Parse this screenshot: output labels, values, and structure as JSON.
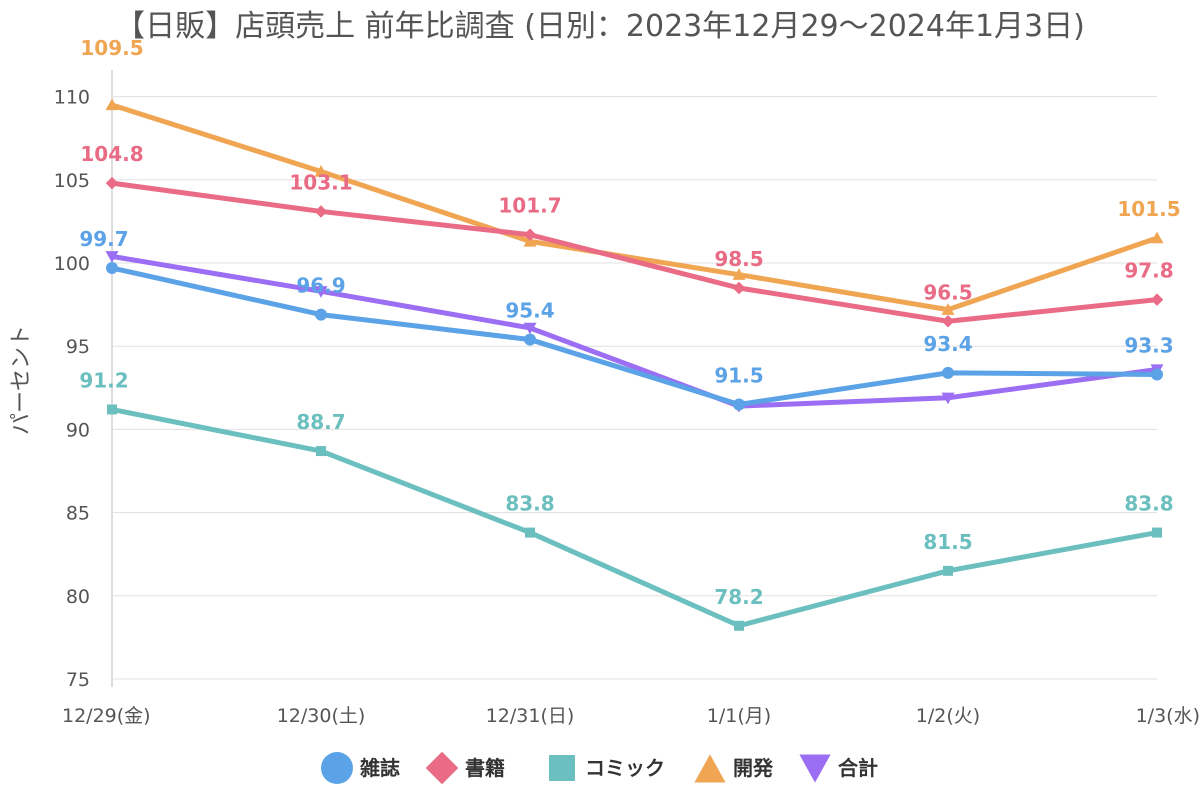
{
  "chart_data": {
    "type": "line",
    "title": "【日販】店頭売上 前年比調査 (日別：2023年12月29～2024年1月3日)",
    "xlabel": "",
    "ylabel": "パーセント",
    "categories": [
      "12/29(金)",
      "12/30(土)",
      "12/31(日)",
      "1/1(月)",
      "1/2(火)",
      "1/3(水)"
    ],
    "ylim": [
      75,
      111
    ],
    "yticks": [
      75,
      80,
      85,
      90,
      95,
      100,
      105,
      110
    ],
    "grid": true,
    "legend_position": "bottom",
    "series": [
      {
        "name": "雑誌",
        "color": "#5ba3e6",
        "marker": "circle",
        "values": [
          99.7,
          96.9,
          95.4,
          91.5,
          93.4,
          93.3
        ],
        "labels": [
          "99.7",
          "96.9",
          "95.4",
          "91.5",
          "93.4",
          "93.3"
        ]
      },
      {
        "name": "書籍",
        "color": "#e96b85",
        "marker": "diamond",
        "values": [
          104.8,
          103.1,
          101.7,
          98.5,
          96.5,
          97.8
        ],
        "labels": [
          "104.8",
          "103.1",
          "101.7",
          "98.5",
          "96.5",
          "97.8"
        ]
      },
      {
        "name": "コミック",
        "color": "#6cbfbf",
        "marker": "square",
        "values": [
          91.2,
          88.7,
          83.8,
          78.2,
          81.5,
          83.8
        ],
        "labels": [
          "91.2",
          "88.7",
          "83.8",
          "78.2",
          "81.5",
          "83.8"
        ]
      },
      {
        "name": "開発",
        "color": "#f0a553",
        "marker": "triangle-up",
        "values": [
          109.5,
          105.5,
          101.3,
          99.3,
          97.2,
          101.5
        ],
        "labels": [
          "109.5",
          "",
          "",
          "",
          "",
          "101.5"
        ]
      },
      {
        "name": "合計",
        "color": "#9b6ef3",
        "marker": "triangle-down",
        "values": [
          100.4,
          98.3,
          96.1,
          91.4,
          91.9,
          93.6
        ],
        "labels": [
          "",
          "",
          "",
          "",
          "",
          ""
        ]
      }
    ]
  }
}
